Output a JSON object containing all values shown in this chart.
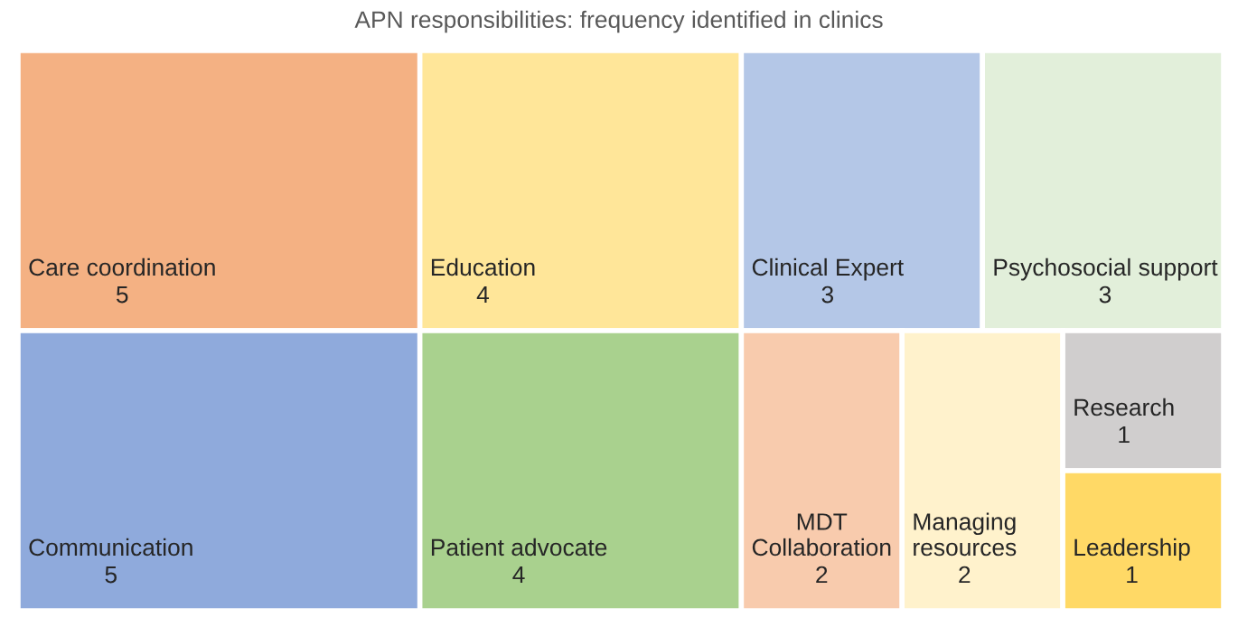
{
  "chart_data": {
    "type": "other",
    "title": "APN responsibilities: frequency identified in clinics",
    "categories": [
      "Care coordination",
      "Education",
      "Clinical Expert",
      "Psychosocial support",
      "Communication",
      "Patient advocate",
      "MDT Collaboration",
      "Managing resources",
      "Research",
      "Leadership"
    ],
    "values": [
      5,
      4,
      3,
      3,
      5,
      4,
      2,
      2,
      1,
      1
    ],
    "data_labels": true,
    "colors": [
      "#f4b183",
      "#ffe699",
      "#b4c7e7",
      "#e2efda",
      "#8faadc",
      "#a9d18e",
      "#f8cbad",
      "#fff2cc",
      "#d0cece",
      "#ffd966"
    ]
  }
}
